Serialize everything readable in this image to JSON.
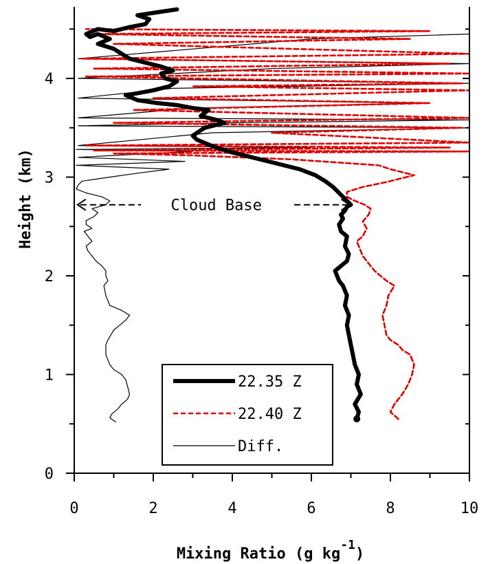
{
  "chart_data": {
    "type": "line",
    "xlabel": "Mixing Ratio (g kg",
    "xlabel_sup": "-1",
    "xlabel_end": ")",
    "ylabel": "Height  (km)",
    "xlim": [
      0,
      10
    ],
    "ylim": [
      0,
      4.7
    ],
    "x_ticks": [
      0,
      2,
      4,
      6,
      8,
      10
    ],
    "y_ticks": [
      0,
      1,
      2,
      3,
      4
    ],
    "annotation": {
      "text": "Cloud Base",
      "height": 2.72,
      "x_start": 0.05,
      "x_end": 7.0
    },
    "legend_position": "bottom-center",
    "series": [
      {
        "name": "22.35 Z",
        "color": "#000000",
        "style": "thick",
        "x": [
          7.15,
          7.2,
          7.1,
          7.25,
          7.15,
          7.2,
          7.1,
          7.05,
          7.0,
          6.95,
          6.9,
          6.95,
          6.85,
          6.9,
          6.8,
          6.7,
          6.65,
          6.6,
          6.75,
          6.9,
          6.95,
          6.85,
          6.9,
          6.75,
          6.7,
          6.8,
          6.75,
          6.85,
          6.9,
          7.0,
          6.85,
          6.7,
          6.55,
          6.35,
          6.1,
          5.7,
          5.1,
          4.5,
          4.0,
          3.6,
          3.4,
          3.1,
          3.0,
          3.3,
          3.8,
          3.6,
          3.2,
          3.4,
          3.0,
          2.6,
          2.1,
          1.6,
          1.3,
          1.6,
          2.0,
          2.4,
          2.6,
          2.3,
          2.2,
          2.5,
          2.2,
          1.8,
          1.4,
          1.2,
          1.0,
          0.6,
          0.9,
          0.6,
          0.4,
          0.3,
          0.6,
          1.0,
          1.4,
          1.8,
          1.9,
          1.6,
          2.1,
          2.6
        ],
        "y": [
          0.55,
          0.62,
          0.7,
          0.8,
          0.9,
          1.0,
          1.1,
          1.2,
          1.3,
          1.4,
          1.5,
          1.6,
          1.7,
          1.8,
          1.9,
          1.95,
          2.0,
          2.05,
          2.1,
          2.15,
          2.22,
          2.3,
          2.4,
          2.45,
          2.52,
          2.58,
          2.62,
          2.66,
          2.7,
          2.72,
          2.78,
          2.84,
          2.9,
          2.96,
          3.02,
          3.08,
          3.14,
          3.2,
          3.25,
          3.3,
          3.33,
          3.38,
          3.42,
          3.5,
          3.55,
          3.58,
          3.62,
          3.68,
          3.7,
          3.73,
          3.75,
          3.78,
          3.83,
          3.85,
          3.88,
          3.92,
          3.97,
          4.0,
          4.05,
          4.08,
          4.12,
          4.16,
          4.2,
          4.25,
          4.3,
          4.35,
          4.4,
          4.45,
          4.42,
          4.45,
          4.5,
          4.48,
          4.52,
          4.55,
          4.6,
          4.64,
          4.67,
          4.7
        ]
      },
      {
        "name": "22.40 Z",
        "color": "#e00000",
        "style": "dashed",
        "x": [
          8.2,
          8.0,
          8.1,
          8.3,
          8.45,
          8.55,
          8.6,
          8.5,
          8.3,
          8.2,
          8.0,
          7.9,
          7.85,
          7.8,
          7.9,
          7.95,
          8.1,
          7.9,
          7.75,
          7.6,
          7.5,
          7.4,
          7.3,
          7.2,
          7.15,
          7.3,
          7.4,
          7.3,
          7.45,
          7.5,
          7.35,
          7.1,
          6.9,
          6.9,
          7.3,
          7.9,
          8.6,
          8.0,
          7.7,
          5.5,
          3.0,
          1.0,
          10.0,
          0.5,
          9.5,
          0.3,
          10.0,
          5.0,
          9.8,
          1.0,
          10.0,
          1.5,
          9.0,
          2.0,
          10.0,
          3.0,
          9.8,
          0.3,
          10.0,
          0.5,
          9.5,
          0.2,
          10.0,
          1.0,
          8.5,
          0.5,
          9.0,
          0.3
        ],
        "y": [
          0.55,
          0.62,
          0.7,
          0.8,
          0.9,
          1.0,
          1.1,
          1.2,
          1.25,
          1.3,
          1.35,
          1.4,
          1.5,
          1.6,
          1.7,
          1.8,
          1.9,
          1.95,
          2.0,
          2.05,
          2.1,
          2.15,
          2.2,
          2.3,
          2.35,
          2.4,
          2.48,
          2.55,
          2.62,
          2.68,
          2.72,
          2.76,
          2.8,
          2.85,
          2.9,
          2.95,
          3.02,
          3.08,
          3.12,
          3.18,
          3.22,
          3.24,
          3.26,
          3.27,
          3.3,
          3.32,
          3.35,
          3.45,
          3.5,
          3.55,
          3.6,
          3.68,
          3.75,
          3.8,
          3.88,
          3.92,
          3.95,
          4.02,
          4.05,
          4.1,
          4.15,
          4.2,
          4.25,
          4.35,
          4.4,
          4.45,
          4.48,
          4.5
        ]
      },
      {
        "name": "Diff.",
        "color": "#000000",
        "style": "thin",
        "x": [
          1.05,
          0.9,
          0.95,
          1.1,
          1.2,
          1.35,
          1.4,
          1.35,
          1.3,
          1.2,
          1.0,
          0.9,
          0.8,
          0.8,
          0.85,
          1.0,
          1.15,
          1.3,
          1.4,
          1.2,
          0.9,
          0.8,
          0.75,
          0.85,
          0.8,
          0.8,
          0.7,
          0.55,
          0.45,
          0.35,
          0.3,
          0.45,
          0.35,
          0.25,
          0.45,
          0.3,
          0.3,
          0.5,
          0.6,
          0.45,
          0.8,
          0.9,
          0.7,
          0.3,
          0.05,
          0.1,
          0.2,
          0.9,
          1.6,
          2.4,
          0.05,
          1.5,
          2.8,
          0.1,
          1.0,
          2.0,
          3.0,
          0.05,
          6.0,
          0.1,
          3.5,
          10.0,
          0.1,
          4.0,
          10.0,
          0.1,
          3.0,
          9.0,
          0.1,
          2.5,
          10.0,
          0.1,
          5.0,
          10.0,
          0.1,
          6.0,
          10.0
        ],
        "y": [
          0.52,
          0.56,
          0.6,
          0.65,
          0.7,
          0.75,
          0.8,
          0.88,
          0.95,
          1.0,
          1.05,
          1.1,
          1.2,
          1.3,
          1.35,
          1.45,
          1.5,
          1.55,
          1.6,
          1.65,
          1.7,
          1.8,
          1.9,
          1.95,
          2.0,
          2.05,
          2.1,
          2.15,
          2.2,
          2.25,
          2.3,
          2.35,
          2.4,
          2.45,
          2.48,
          2.52,
          2.56,
          2.6,
          2.64,
          2.68,
          2.72,
          2.76,
          2.8,
          2.84,
          2.88,
          2.92,
          2.96,
          3.0,
          3.04,
          3.08,
          3.12,
          3.14,
          3.16,
          3.2,
          3.22,
          3.24,
          3.26,
          3.28,
          3.3,
          3.32,
          3.45,
          3.5,
          3.52,
          3.55,
          3.58,
          3.6,
          3.7,
          3.75,
          3.8,
          3.9,
          3.95,
          4.0,
          4.1,
          4.15,
          4.2,
          4.4,
          4.45
        ]
      }
    ]
  }
}
